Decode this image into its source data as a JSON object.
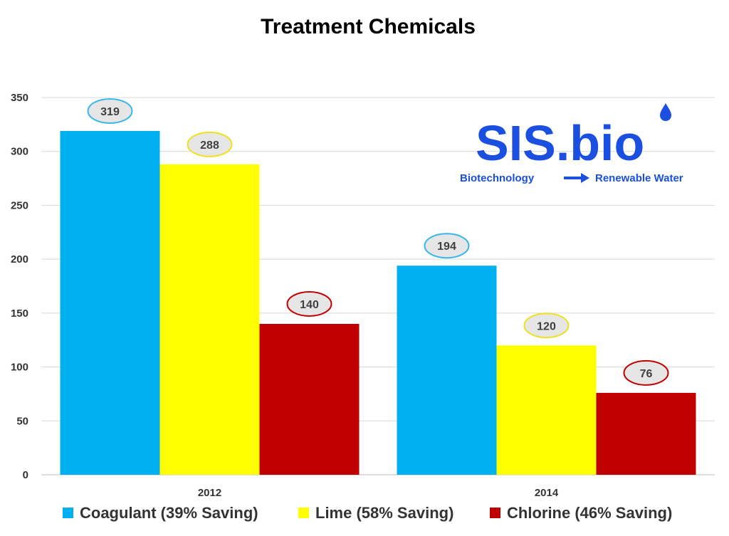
{
  "chart_data": {
    "type": "bar",
    "title": "Treatment Chemicals",
    "categories": [
      "2012",
      "2014"
    ],
    "series": [
      {
        "name": "Coagulant (39% Saving)",
        "color": "#00b0f0",
        "label_outline": "#38b6e8",
        "values": [
          319,
          194
        ]
      },
      {
        "name": "Lime (58% Saving)",
        "color": "#ffff00",
        "label_outline": "#f0e020",
        "values": [
          288,
          120
        ]
      },
      {
        "name": "Chlorine (46% Saving)",
        "color": "#c00000",
        "label_outline": "#c00000",
        "values": [
          140,
          76
        ]
      }
    ],
    "ylim": [
      0,
      350
    ],
    "yticks": [
      0,
      50,
      100,
      150,
      200,
      250,
      300,
      350
    ],
    "grid": true,
    "legend_position": "bottom",
    "data_labels": true
  },
  "logo": {
    "text": "SIS.bio",
    "tagline_left": "Biotechnology",
    "tagline_right": "Renewable Water",
    "color": "#1a4fe0"
  }
}
